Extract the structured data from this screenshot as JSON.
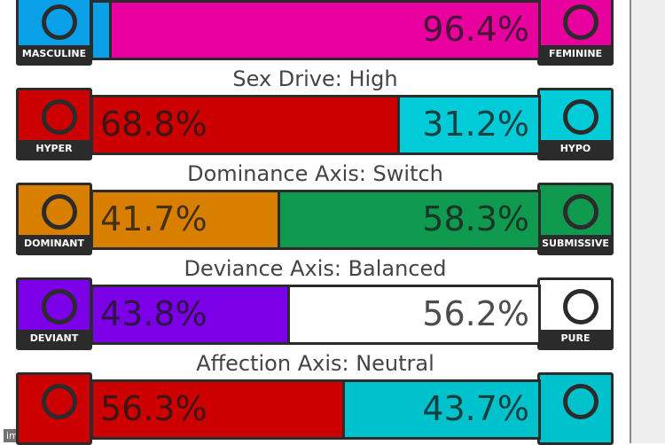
{
  "rows": [
    {
      "title": null,
      "left": {
        "label": "MASCULINE",
        "value": 3.6,
        "value_label": null,
        "color": "#0aa0e8"
      },
      "right": {
        "label": "FEMININE",
        "value": 96.4,
        "value_label": "96.4%",
        "color": "#e8009e"
      }
    },
    {
      "title": "Sex Drive: High",
      "left": {
        "label": "HYPER",
        "value": 68.8,
        "value_label": "68.8%",
        "color": "#cc0000"
      },
      "right": {
        "label": "HYPO",
        "value": 31.2,
        "value_label": "31.2%",
        "color": "#00cbd6"
      }
    },
    {
      "title": "Dominance Axis: Switch",
      "left": {
        "label": "DOMINANT",
        "value": 41.7,
        "value_label": "41.7%",
        "color": "#d87f00"
      },
      "right": {
        "label": "SUBMISSIVE",
        "value": 58.3,
        "value_label": "58.3%",
        "color": "#0f9a50"
      }
    },
    {
      "title": "Deviance Axis: Balanced",
      "left": {
        "label": "DEVIANT",
        "value": 43.8,
        "value_label": "43.8%",
        "color": "#7b00e8"
      },
      "right": {
        "label": "PURE",
        "value": 56.2,
        "value_label": "56.2%",
        "color": "#ffffff"
      }
    },
    {
      "title": "Affection Axis: Neutral",
      "left": {
        "label": null,
        "value": 56.3,
        "value_label": "56.3%",
        "color": "#cc0000"
      },
      "right": {
        "label": null,
        "value": 43.7,
        "value_label": "43.7%",
        "color": "#00c2cc"
      }
    }
  ],
  "watermark": "imgflip.com"
}
